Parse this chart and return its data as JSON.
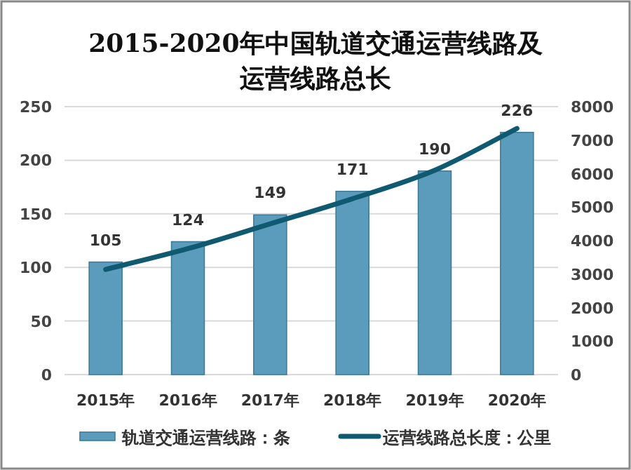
{
  "chart_data": {
    "type": "bar",
    "title": "2015-2020年中国轨道交通运营线路及运营线路总长",
    "categories": [
      "2015年",
      "2016年",
      "2017年",
      "2018年",
      "2019年",
      "2020年"
    ],
    "series": [
      {
        "name": "轨道交通运营线路：条",
        "color": "#5b9cbc",
        "values": [
          105,
          124,
          149,
          171,
          190,
          226
        ],
        "value_labels": [
          "105",
          "124",
          "149",
          "171",
          "190",
          "226"
        ]
      },
      {
        "name": "运营线路总长度：公里",
        "type": "line",
        "axis": "y2",
        "color": "#0f5a70",
        "values": [
          3140,
          3760,
          4500,
          5250,
          6100,
          7350
        ]
      }
    ],
    "ylim": [
      0,
      250
    ],
    "yticks": [
      0,
      50,
      100,
      150,
      200,
      250
    ],
    "y2lim": [
      0,
      8000
    ],
    "y2ticks": [
      0,
      1000,
      2000,
      3000,
      4000,
      5000,
      6000,
      7000,
      8000
    ],
    "grid": "y",
    "legend": "bottom",
    "marker": "none",
    "line_style": "solid"
  }
}
